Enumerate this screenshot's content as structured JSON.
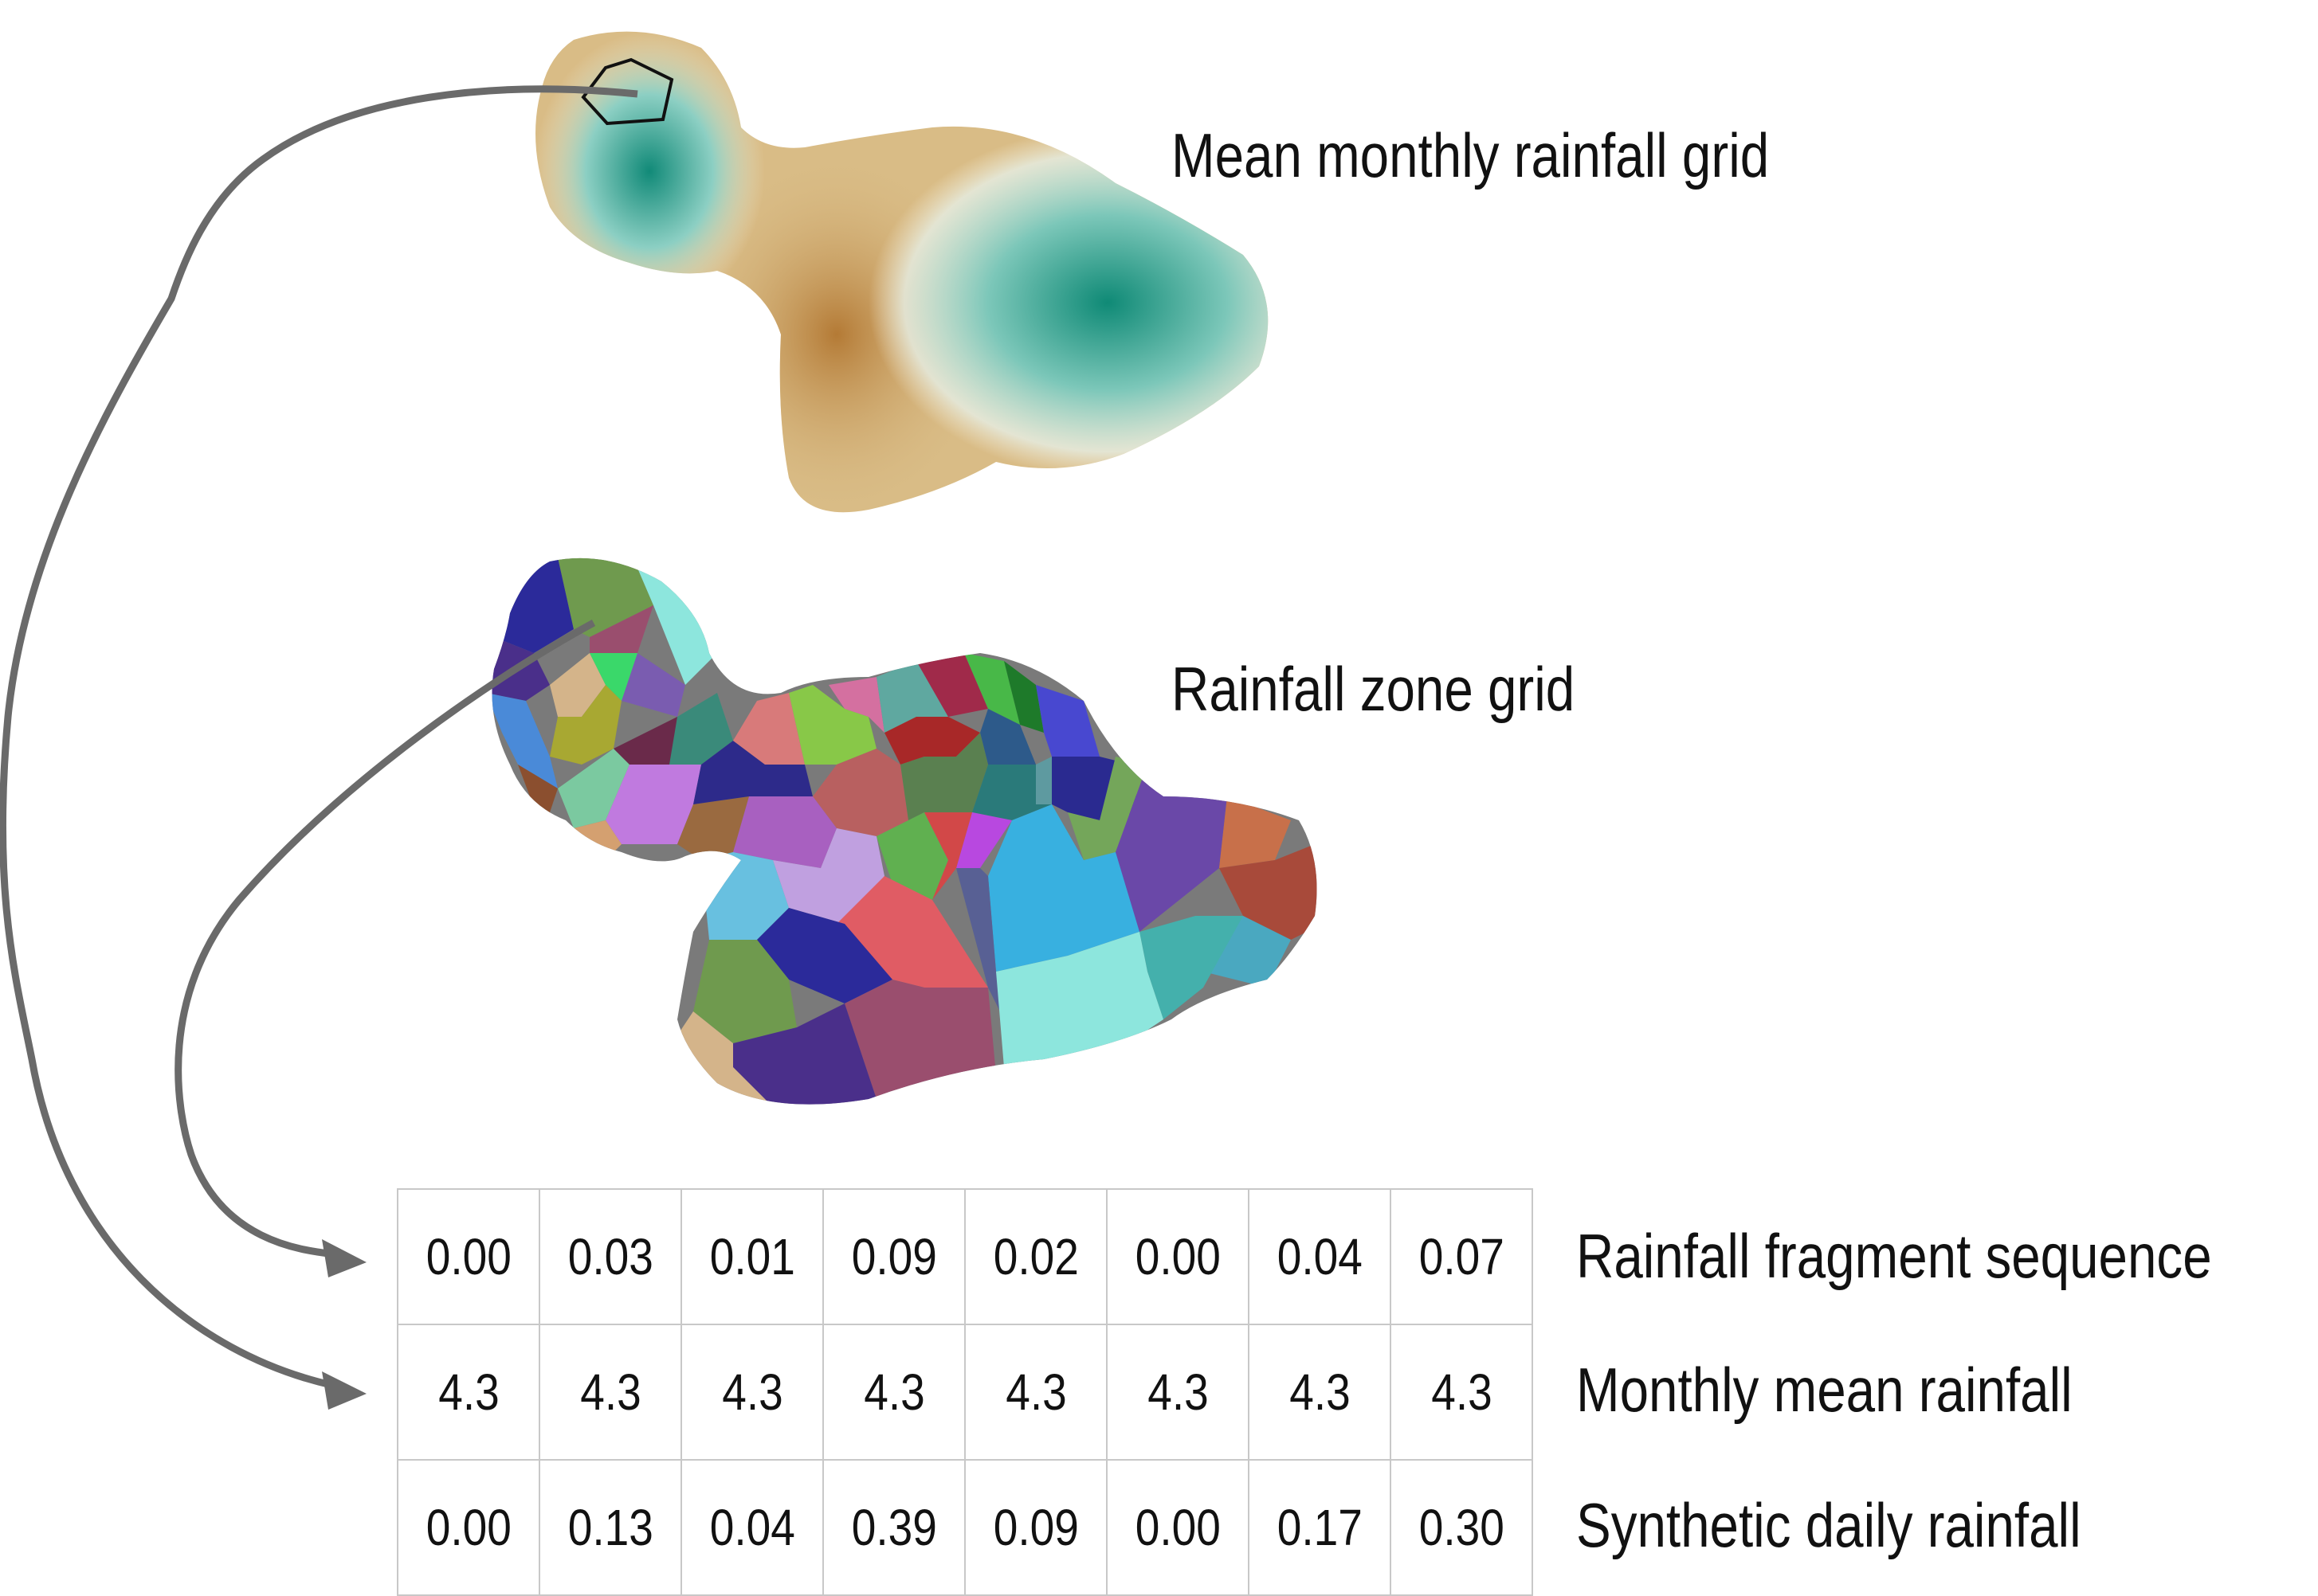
{
  "labels": {
    "mean_grid": "Mean monthly rainfall grid",
    "zone_grid": "Rainfall zone grid"
  },
  "table": {
    "rows": [
      {
        "label": "Rainfall fragment sequence",
        "values": [
          "0.00",
          "0.03",
          "0.01",
          "0.09",
          "0.02",
          "0.00",
          "0.04",
          "0.07"
        ]
      },
      {
        "label": "Monthly mean rainfall",
        "values": [
          "4.3",
          "4.3",
          "4.3",
          "4.3",
          "4.3",
          "4.3",
          "4.3",
          "4.3"
        ]
      },
      {
        "label": "Synthetic daily rainfall",
        "values": [
          "0.00",
          "0.13",
          "0.04",
          "0.39",
          "0.09",
          "0.00",
          "0.17",
          "0.30"
        ]
      }
    ]
  },
  "colors": {
    "arrow": "#6a6a6a",
    "rain_low": "#c08a3e",
    "rain_mid": "#f3ecd7",
    "rain_high": "#118a78",
    "zone_palette": [
      "#2b2a9a",
      "#6f9a4e",
      "#9a4e6e",
      "#8de6dd",
      "#4a2f8a",
      "#d4b48a",
      "#3ad86a",
      "#7a5cb0",
      "#a8a832",
      "#4a8ad8",
      "#8b4f2f",
      "#7bc9a0",
      "#6a2a4a",
      "#3a8a7a",
      "#c07adf",
      "#d4a070",
      "#9a6a40",
      "#2d2a8a",
      "#d87a7a",
      "#88c848",
      "#d470a0",
      "#b86060",
      "#a860c0",
      "#68c0e0",
      "#c0a0e0",
      "#5fa8a0",
      "#a02a4a",
      "#a82828",
      "#48b848",
      "#1e7a2a",
      "#2d5a8a",
      "#5a8050",
      "#2a7a7a",
      "#60b050",
      "#b848e0",
      "#4848d0",
      "#2a2a90",
      "#5e9aa0",
      "#74a65a",
      "#6a48a8",
      "#c8704a",
      "#a84a3a",
      "#4aa8c0",
      "#44b0ac",
      "#38b0e0",
      "#586094",
      "#d24848",
      "#e05c64"
    ]
  }
}
